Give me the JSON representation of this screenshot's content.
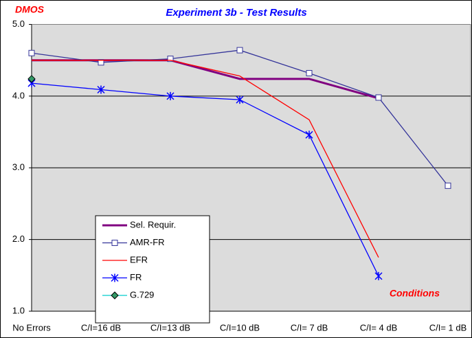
{
  "chart_data": {
    "type": "line",
    "title": "Experiment 3b - Test Results",
    "y_label": "DMOS",
    "x_label": "Conditions",
    "categories": [
      "No Errors",
      "C/I=16 dB",
      "C/I=13 dB",
      "C/I=10 dB",
      "C/I= 7 dB",
      "C/I= 4 dB",
      "C/I= 1 dB"
    ],
    "series": [
      {
        "name": "Sel. Requir.",
        "color": "#800080",
        "marker": "none",
        "values": [
          4.5,
          4.5,
          4.5,
          4.24,
          4.24,
          3.97,
          null
        ]
      },
      {
        "name": "AMR-FR",
        "color": "#333399",
        "marker": "square",
        "values": [
          4.6,
          4.47,
          4.52,
          4.64,
          4.32,
          3.98,
          2.75
        ]
      },
      {
        "name": "EFR",
        "color": "#ff0000",
        "marker": "none",
        "values": [
          4.5,
          4.5,
          4.5,
          4.28,
          3.67,
          1.75,
          null
        ]
      },
      {
        "name": "FR",
        "color": "#0000ff",
        "marker": "star",
        "values": [
          4.18,
          4.09,
          4.0,
          3.95,
          3.46,
          1.49,
          null
        ]
      },
      {
        "name": "G.729",
        "color": "#00cccc",
        "marker": "diamond",
        "values": [
          4.24,
          null,
          null,
          null,
          null,
          null,
          null
        ]
      }
    ],
    "ylim": [
      1,
      5
    ],
    "yticks": [
      {
        "value": 1,
        "label": "1.0"
      },
      {
        "value": 2,
        "label": "2.0"
      },
      {
        "value": 3,
        "label": "3.0"
      },
      {
        "value": 4,
        "label": "4.0"
      },
      {
        "value": 5,
        "label": "5.0"
      }
    ],
    "grid": true
  }
}
